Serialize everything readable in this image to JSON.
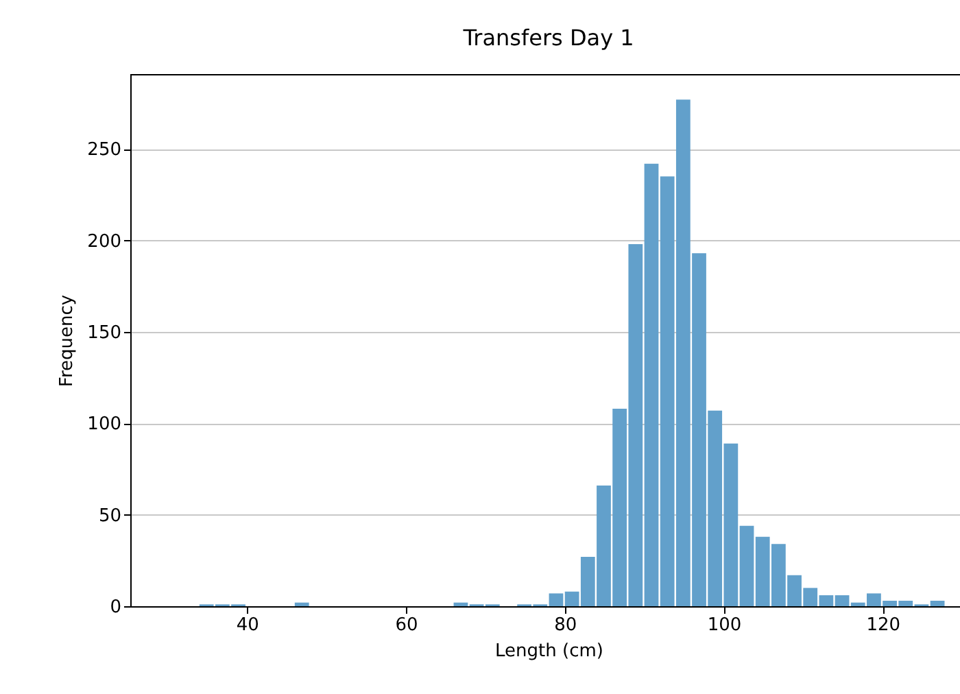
{
  "chart_data": {
    "type": "histogram",
    "title": "Transfers Day 1",
    "xlabel": "Length (cm)",
    "ylabel": "Frequency",
    "bins": [
      34,
      36,
      38,
      40,
      42,
      44,
      46,
      48,
      50,
      52,
      54,
      56,
      58,
      60,
      62,
      64,
      66,
      68,
      70,
      72,
      74,
      76,
      78,
      80,
      82,
      84,
      86,
      88,
      90,
      92,
      94,
      96,
      98,
      100,
      102,
      104,
      106,
      108,
      110,
      112,
      114,
      116,
      118,
      120,
      122,
      124,
      126,
      128
    ],
    "values": [
      1,
      1,
      1,
      0,
      0,
      0,
      2,
      0,
      0,
      0,
      0,
      0,
      0,
      0,
      0,
      0,
      2,
      1,
      1,
      0,
      1,
      1,
      7,
      8,
      27,
      66,
      108,
      198,
      242,
      235,
      277,
      193,
      107,
      89,
      44,
      38,
      34,
      17,
      10,
      6,
      6,
      2,
      7,
      3,
      3,
      1,
      3
    ],
    "color": "#62a0cb",
    "xlim": [
      25.3,
      130.6
    ],
    "xticks": [
      40,
      60,
      80,
      100,
      120
    ],
    "ylim": [
      0,
      291
    ],
    "yticks": [
      0,
      50,
      100,
      150,
      200,
      250
    ],
    "grid": "y"
  }
}
